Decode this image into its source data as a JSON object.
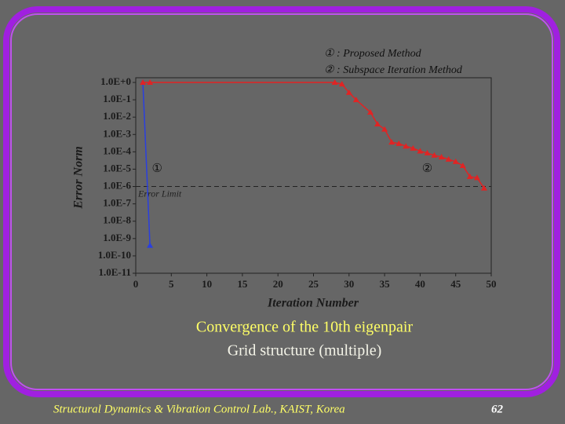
{
  "chart_data": {
    "type": "line",
    "y_label": "Error Norm",
    "x_label": "Iteration Number",
    "log_y": true,
    "xlim": [
      0,
      50
    ],
    "xticks": [
      0,
      5,
      10,
      15,
      20,
      25,
      30,
      35,
      40,
      45,
      50
    ],
    "ylim": [
      1e-11,
      1
    ],
    "yticks": [
      {
        "value": 1,
        "label": "1.0E+0"
      },
      {
        "value": 0.1,
        "label": "1.0E-1"
      },
      {
        "value": 0.01,
        "label": "1.0E-2"
      },
      {
        "value": 0.001,
        "label": "1.0E-3"
      },
      {
        "value": 0.0001,
        "label": "1.0E-4"
      },
      {
        "value": 1e-05,
        "label": "1.0E-5"
      },
      {
        "value": 1e-06,
        "label": "1.0E-6"
      },
      {
        "value": 1e-07,
        "label": "1.0E-7"
      },
      {
        "value": 1e-08,
        "label": "1.0E-8"
      },
      {
        "value": 1e-09,
        "label": "1.0E-9"
      },
      {
        "value": 1e-10,
        "label": "1.0E-10"
      },
      {
        "value": 1e-11,
        "label": "1.0E-11"
      }
    ],
    "series": [
      {
        "name": "① : Proposed Method",
        "color": "#2a3fe0",
        "x": [
          1,
          2
        ],
        "values": [
          1,
          4e-10
        ]
      },
      {
        "name": "② : Subspace Iteration Method",
        "color": "#e02424",
        "x": [
          1,
          2,
          28,
          29,
          30,
          31,
          33,
          34,
          35,
          36,
          37,
          38,
          39,
          40,
          41,
          42,
          43,
          44,
          45,
          46,
          47,
          48,
          49
        ],
        "values": [
          1,
          1,
          1,
          0.8,
          0.26,
          0.1,
          0.019,
          0.004,
          0.002,
          0.00036,
          0.0003,
          0.00021,
          0.00016,
          0.00011,
          8.5e-05,
          6.3e-05,
          5e-05,
          3.7e-05,
          2.7e-05,
          1.6e-05,
          3.7e-06,
          3.2e-06,
          8e-07
        ]
      }
    ],
    "reference_line": {
      "label": "Error Limit",
      "value": 1e-06
    },
    "annotations": [
      {
        "text": "①",
        "x": 3,
        "y": 1e-05
      },
      {
        "text": "②",
        "x": 41,
        "y": 1e-05
      }
    ],
    "title": "Convergence of the 10th eigenpair",
    "subtitle": "Grid structure (multiple)",
    "footer": "Structural Dynamics & Vibration Control Lab., KAIST, Korea",
    "page_number": "62"
  }
}
